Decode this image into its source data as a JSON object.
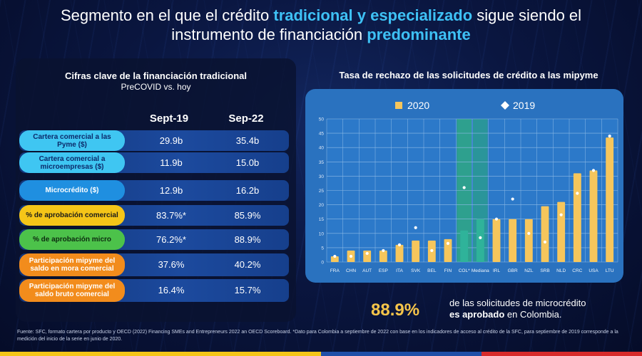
{
  "headline": {
    "part1": "Segmento en el que el crédito ",
    "highlight1": "tradicional y especializado",
    "part2": " sigue siendo el",
    "part3": "instrumento de financiación ",
    "highlight2": "predominante"
  },
  "left": {
    "title": "Cifras clave de la financiación tradicional",
    "subtitle": "PreCOVID vs. hoy",
    "col1": "Sept-19",
    "col2": "Sep-22",
    "rows": [
      {
        "label": "Cartera comercial a las Pyme ($)",
        "v1": "29.9b",
        "v2": "35.4b",
        "color": "#3fc6f2",
        "text_color": "#0b2a6a"
      },
      {
        "label": "Cartera comercial a microempresas ($)",
        "v1": "11.9b",
        "v2": "15.0b",
        "color": "#3fc6f2",
        "text_color": "#0b2a6a"
      },
      {
        "label": "Microcrédito ($)",
        "v1": "12.9b",
        "v2": "16.2b",
        "color": "#1f8fe0",
        "text_color": "#ffffff"
      },
      {
        "label": "% de aprobación comercial",
        "v1": "83.7%*",
        "v2": "85.9%",
        "color": "#f5c518",
        "text_color": "#1a1a1a"
      },
      {
        "label": "% de aprobación micro",
        "v1": "76.2%*",
        "v2": "88.9%",
        "color": "#4cc24a",
        "text_color": "#0d2a10"
      },
      {
        "label": "Participación mipyme del saldo en mora comercial",
        "v1": "37.6%",
        "v2": "40.2%",
        "color": "#f28c1c",
        "text_color": "#ffffff"
      },
      {
        "label": "Participación mipyme del saldo bruto comercial",
        "v1": "16.4%",
        "v2": "15.7%",
        "color": "#f28c1c",
        "text_color": "#ffffff"
      }
    ]
  },
  "chart_title": "Tasa de rechazo de las solicitudes de crédito a las mipyme",
  "chart_data": {
    "type": "bar",
    "title": "Tasa de rechazo de las solicitudes de crédito a las mipyme",
    "categories": [
      "FRA",
      "CHN",
      "AUT",
      "ESP",
      "ITA",
      "SVK",
      "BEL",
      "FIN",
      "COL*",
      "Mediana",
      "IRL",
      "GBR",
      "NZL",
      "SRB",
      "NLD",
      "CRC",
      "USA",
      "LTU"
    ],
    "series": [
      {
        "name": "2020",
        "type": "bar",
        "values": [
          2,
          4,
          4,
          4,
          6,
          7.5,
          7.5,
          8,
          11,
          15,
          15,
          15,
          15,
          19.5,
          21,
          31,
          32,
          43.5
        ]
      },
      {
        "name": "2019",
        "type": "point",
        "values": [
          2,
          2,
          3,
          4,
          6,
          12,
          4,
          6.5,
          26,
          8.5,
          15,
          22,
          10,
          7,
          16.5,
          24,
          32,
          44
        ]
      }
    ],
    "highlight": {
      "COL*": "#2fae7a",
      "Mediana": "#2a9f8a"
    },
    "ylim": [
      0,
      50
    ],
    "yticks": [
      0,
      5,
      10,
      15,
      20,
      25,
      30,
      35,
      40,
      45,
      50
    ],
    "grid": true,
    "legend": "top-center",
    "colors": {
      "bar": "#f6c65c",
      "point": "#ffffff"
    }
  },
  "stat": {
    "value": "88.9%",
    "line1": "de las solicitudes de microcrédito",
    "line2_bold": "es aprobado",
    "line2_rest": " en Colombia."
  },
  "footnote": "Fuente: SFC, formato cartera por producto y OECD (2022) Financing SMEs and Entrepreneurs 2022 an OECD Scoreboard. *Dato para Colombia a septiembre de 2022 con base en los indicadores de acceso al crédito de la SFC, para septiembre de 2019 corresponde a la medición del inicio de la serie en junio de 2020.",
  "flag_colors": [
    "#f5c518",
    "#1f4fa8",
    "#d72b2b"
  ]
}
